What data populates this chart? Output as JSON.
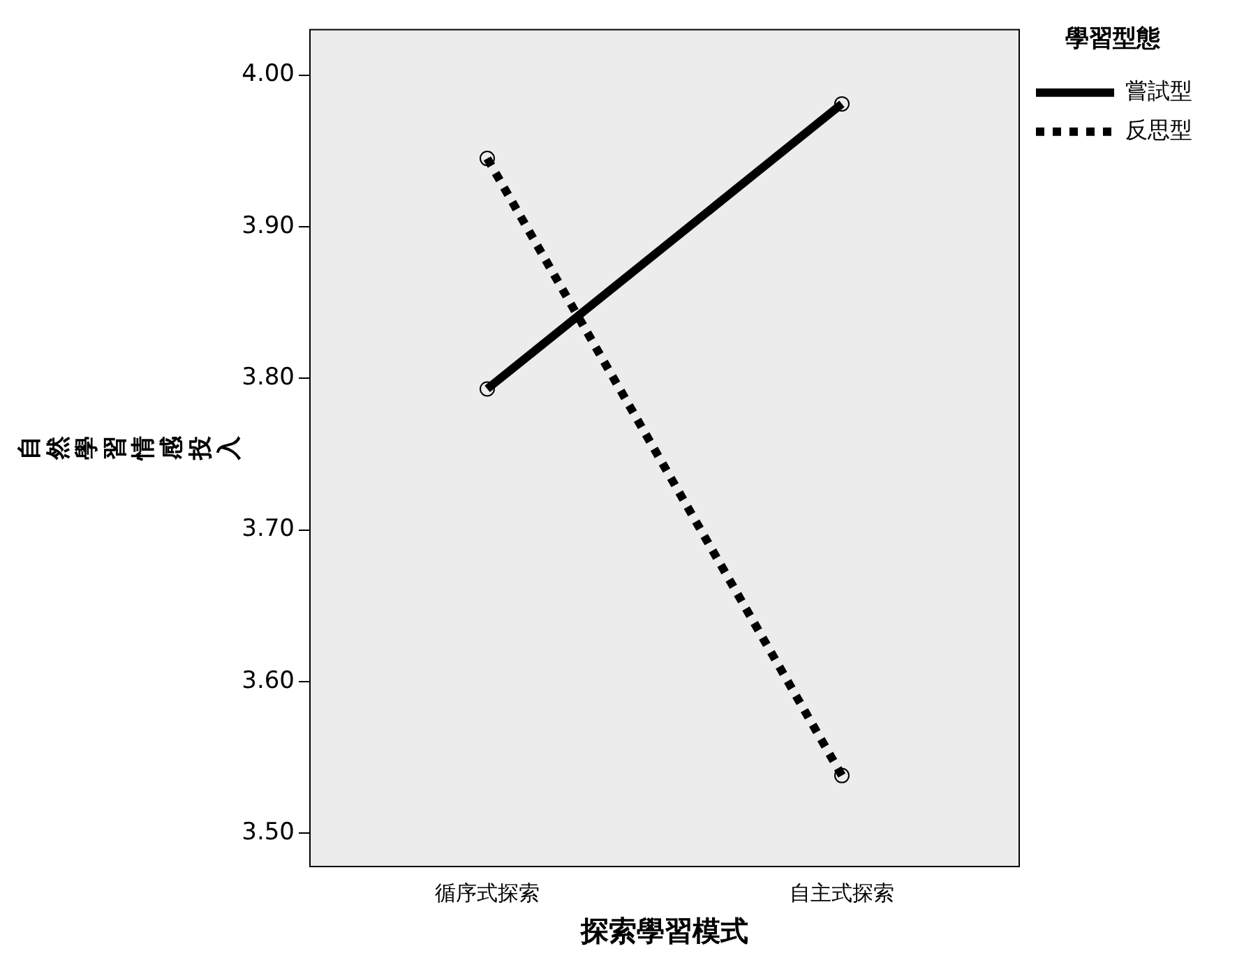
{
  "chart_data": {
    "type": "line",
    "xlabel": "探索學習模式",
    "ylabel": "自然學習情感投入",
    "legend_title": "學習型態",
    "categories": [
      "循序式探索",
      "自主式探索"
    ],
    "series": [
      {
        "name": "嘗試型",
        "color": "#000000",
        "values": [
          3.793,
          3.981
        ],
        "line_style": "solid"
      },
      {
        "name": "反思型",
        "color": "#000000",
        "values": [
          3.945,
          3.538
        ],
        "line_style": "dotted"
      }
    ],
    "ylim": [
      3.478,
      4.03
    ],
    "yticks": [
      {
        "value": 3.5,
        "label": "3.50"
      },
      {
        "value": 3.6,
        "label": "3.60"
      },
      {
        "value": 3.7,
        "label": "3.70"
      },
      {
        "value": 3.8,
        "label": "3.80"
      },
      {
        "value": 3.9,
        "label": "3.90"
      },
      {
        "value": 4.0,
        "label": "4.00"
      }
    ],
    "grid": false,
    "legend": "top right",
    "marker": "circle"
  }
}
